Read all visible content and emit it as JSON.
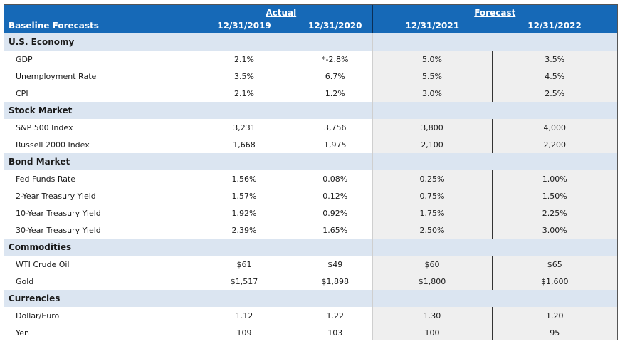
{
  "header": {
    "title": "Baseline Forecasts",
    "actual_label": "Actual",
    "forecast_label": "Forecast",
    "dates": [
      "12/31/2019",
      "12/31/2020",
      "12/31/2021",
      "12/31/2022"
    ]
  },
  "sections": [
    {
      "name": "U.S. Economy",
      "rows": [
        {
          "label": "GDP",
          "values": [
            "2.1%",
            "*-2.8%",
            "5.0%",
            "3.5%"
          ]
        },
        {
          "label": "Unemployment Rate",
          "values": [
            "3.5%",
            "6.7%",
            "5.5%",
            "4.5%"
          ]
        },
        {
          "label": "CPI",
          "values": [
            "2.1%",
            "1.2%",
            "3.0%",
            "2.5%"
          ]
        }
      ]
    },
    {
      "name": "Stock Market",
      "rows": [
        {
          "label": "S&P 500 Index",
          "values": [
            "3,231",
            "3,756",
            "3,800",
            "4,000"
          ]
        },
        {
          "label": "Russell 2000 Index",
          "values": [
            "1,668",
            "1,975",
            "2,100",
            "2,200"
          ]
        }
      ]
    },
    {
      "name": "Bond Market",
      "rows": [
        {
          "label": "Fed Funds Rate",
          "values": [
            "1.56%",
            "0.08%",
            "0.25%",
            "1.00%"
          ]
        },
        {
          "label": "2-Year Treasury Yield",
          "values": [
            "1.57%",
            "0.12%",
            "0.75%",
            "1.50%"
          ]
        },
        {
          "label": "10-Year Treasury Yield",
          "values": [
            "1.92%",
            "0.92%",
            "1.75%",
            "2.25%"
          ]
        },
        {
          "label": "30-Year Treasury Yield",
          "values": [
            "2.39%",
            "1.65%",
            "2.50%",
            "3.00%"
          ]
        }
      ]
    },
    {
      "name": "Commodities",
      "rows": [
        {
          "label": "WTI Crude Oil",
          "values": [
            "$61",
            "$49",
            "$60",
            "$65"
          ]
        },
        {
          "label": "Gold",
          "values": [
            "$1,517",
            "$1,898",
            "$1,800",
            "$1,600"
          ]
        }
      ]
    },
    {
      "name": "Currencies",
      "rows": [
        {
          "label": "Dollar/Euro",
          "values": [
            "1.12",
            "1.22",
            "1.30",
            "1.20"
          ]
        },
        {
          "label": "Yen",
          "values": [
            "109",
            "103",
            "100",
            "95"
          ]
        }
      ]
    }
  ],
  "colors": {
    "header_blue": "#1669b7",
    "section_band": "#dbe5f1",
    "forecast_shade": "#efefef"
  }
}
